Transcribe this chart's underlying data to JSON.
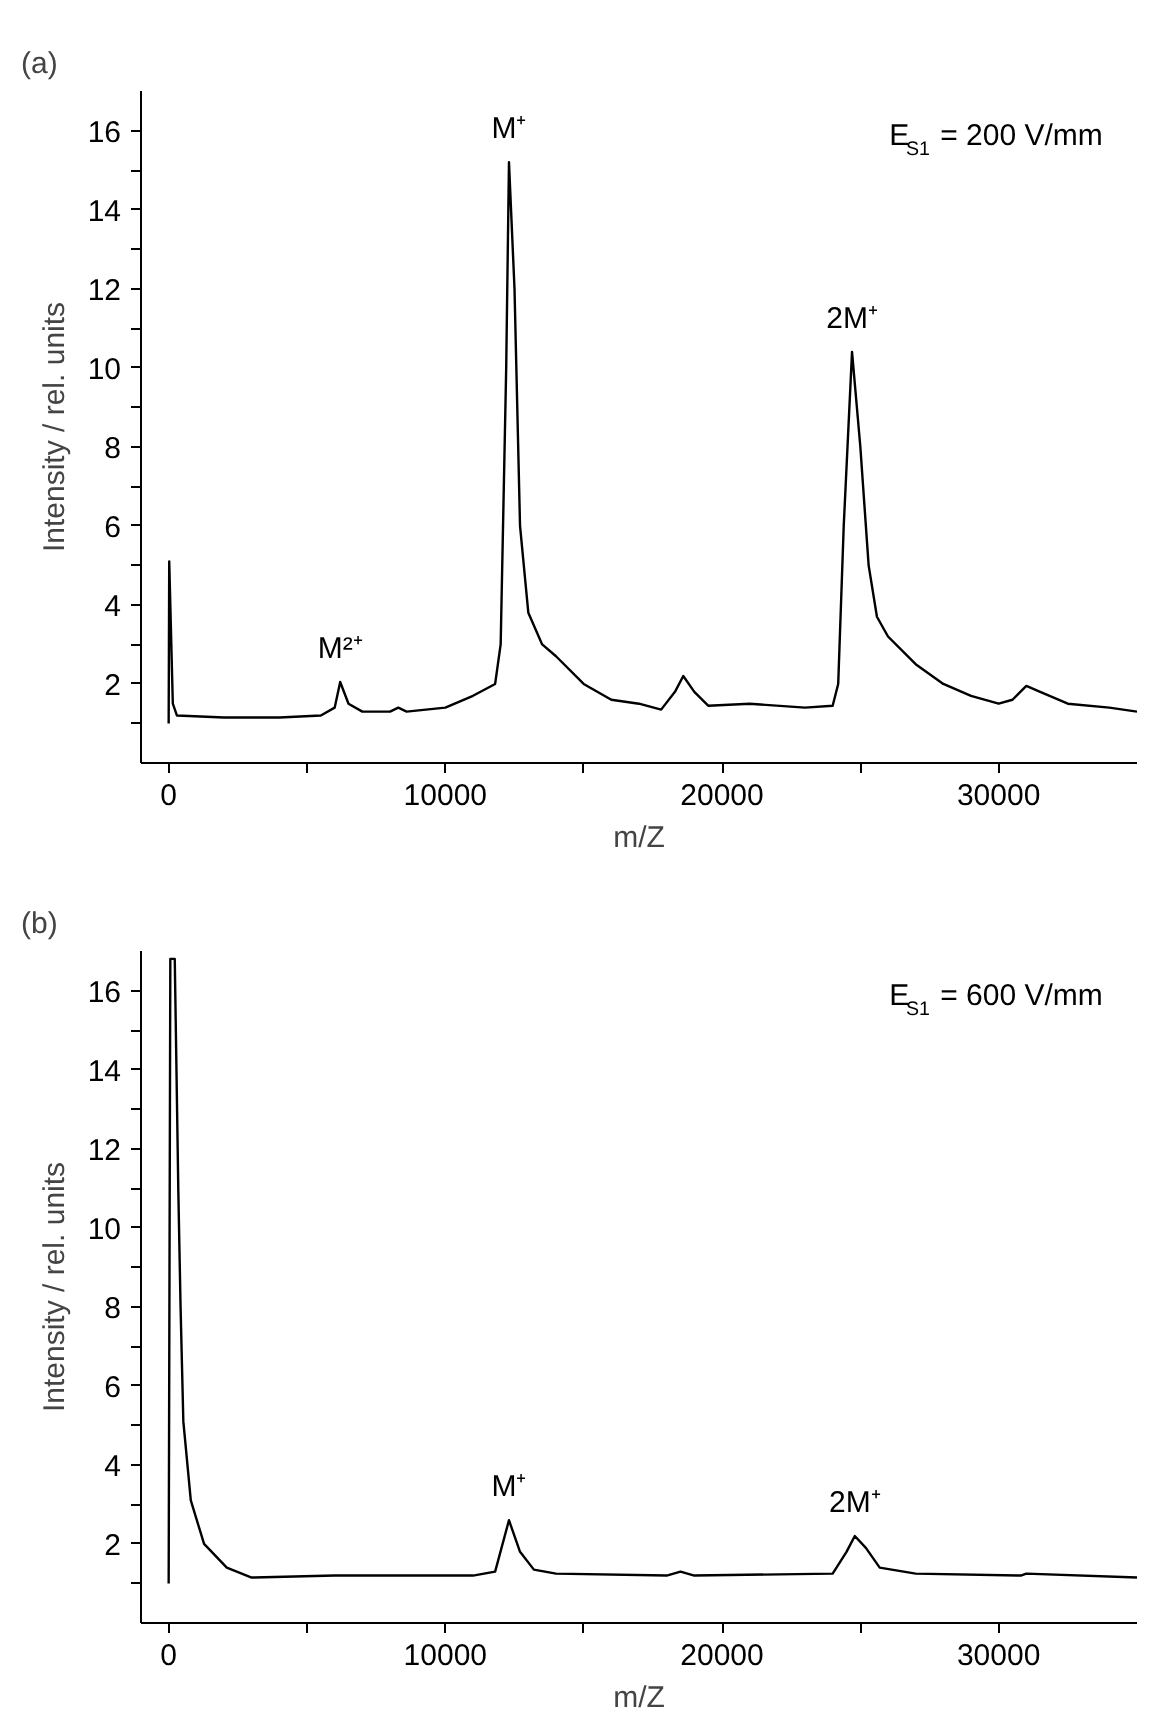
{
  "chart_data": [
    {
      "type": "line",
      "title": "(a)",
      "xlabel": "m/Z",
      "ylabel": "Intensity / rel. units",
      "xlim": [
        -1000,
        35000
      ],
      "ylim": [
        0,
        17
      ],
      "xticks": [
        0,
        {
          "value": 5000,
          "label": null
        },
        10000,
        {
          "value": 15000,
          "label": null
        },
        20000,
        {
          "value": 25000,
          "label": null
        },
        30000
      ],
      "yticks": [
        {
          "value": 1,
          "label": null
        },
        2,
        {
          "value": 3,
          "label": null
        },
        4,
        {
          "value": 5,
          "label": null
        },
        6,
        {
          "value": 7,
          "label": null
        },
        8,
        {
          "value": 9,
          "label": null
        },
        10,
        {
          "value": 11,
          "label": null
        },
        12,
        {
          "value": 13,
          "label": null
        },
        14,
        {
          "value": 15,
          "label": null
        },
        16
      ],
      "grid": false,
      "annotations": [
        {
          "text": "M²⁺",
          "x": 6200,
          "y": 2.05
        },
        {
          "text": "M⁺",
          "x": 12300,
          "y": 15.2
        },
        {
          "text": "2M⁺",
          "x": 24700,
          "y": 10.4
        },
        "E$_{S1}$ = 200 V/mm"
      ],
      "series": [
        {
          "color": "#000000",
          "x": [
            0,
            20,
            150,
            300,
            2000,
            4000,
            5500,
            6000,
            6200,
            6500,
            7000,
            8000,
            8300,
            8600,
            10000,
            11000,
            11800,
            12000,
            12200,
            12300,
            12500,
            12700,
            13000,
            13500,
            14000,
            15000,
            16000,
            17000,
            17800,
            18300,
            18600,
            19000,
            19500,
            21000,
            23000,
            24000,
            24200,
            24400,
            24700,
            25000,
            25300,
            25600,
            26000,
            27000,
            28000,
            29000,
            30000,
            30500,
            31000,
            31500,
            32500,
            34000,
            35000
          ],
          "values": [
            1.0,
            5.1,
            1.5,
            1.2,
            1.15,
            1.15,
            1.2,
            1.4,
            2.05,
            1.5,
            1.3,
            1.3,
            1.4,
            1.3,
            1.4,
            1.7,
            2.0,
            3.0,
            10.0,
            15.2,
            12.0,
            6.0,
            3.8,
            3.0,
            2.7,
            2.0,
            1.6,
            1.5,
            1.35,
            1.8,
            2.2,
            1.8,
            1.45,
            1.5,
            1.4,
            1.45,
            2.0,
            6.0,
            10.4,
            8.0,
            5.0,
            3.7,
            3.2,
            2.5,
            2.0,
            1.7,
            1.5,
            1.6,
            1.95,
            1.8,
            1.5,
            1.4,
            1.3
          ]
        }
      ]
    },
    {
      "type": "line",
      "title": "(b)",
      "xlabel": "m/Z",
      "ylabel": "Intensity / rel. units",
      "xlim": [
        -1000,
        35000
      ],
      "ylim": [
        0,
        17
      ],
      "xticks": [
        0,
        {
          "value": 5000,
          "label": null
        },
        10000,
        {
          "value": 15000,
          "label": null
        },
        20000,
        {
          "value": 25000,
          "label": null
        },
        30000
      ],
      "yticks": [
        {
          "value": 1,
          "label": null
        },
        2,
        {
          "value": 3,
          "label": null
        },
        4,
        {
          "value": 5,
          "label": null
        },
        6,
        {
          "value": 7,
          "label": null
        },
        8,
        {
          "value": 9,
          "label": null
        },
        10,
        {
          "value": 11,
          "label": null
        },
        12,
        {
          "value": 13,
          "label": null
        },
        14,
        {
          "value": 15,
          "label": null
        },
        16
      ],
      "grid": false,
      "annotations": [
        {
          "text": "M⁺",
          "x": 12300,
          "y": 2.6
        },
        {
          "text": "2M⁺",
          "x": 24800,
          "y": 2.2
        },
        "E$_{S1}$ = 600 V/mm"
      ],
      "series": [
        {
          "color": "#000000",
          "x": [
            0,
            60,
            220,
            350,
            430,
            530,
            800,
            1280,
            2100,
            3000,
            6000,
            11000,
            11800,
            12300,
            12700,
            13200,
            14000,
            18000,
            18500,
            19000,
            24000,
            24500,
            24800,
            25200,
            25700,
            27000,
            30800,
            31000,
            35000
          ],
          "values": [
            1.0,
            16.8,
            16.8,
            10.9,
            8.0,
            5.1,
            3.1,
            2.0,
            1.4,
            1.15,
            1.2,
            1.2,
            1.3,
            2.6,
            1.8,
            1.35,
            1.25,
            1.2,
            1.3,
            1.2,
            1.25,
            1.8,
            2.2,
            1.9,
            1.4,
            1.25,
            1.2,
            1.25,
            1.15
          ]
        }
      ]
    }
  ]
}
